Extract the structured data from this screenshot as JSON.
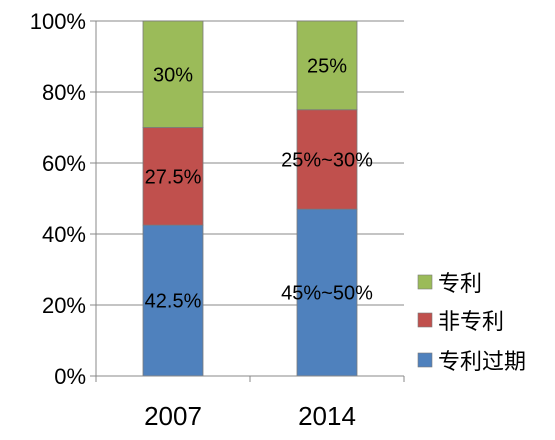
{
  "chart_data": {
    "type": "bar",
    "stacked": true,
    "percent_axis": true,
    "categories": [
      "2007",
      "2014"
    ],
    "ylim": [
      0,
      100
    ],
    "yticks": [
      "0%",
      "20%",
      "40%",
      "60%",
      "80%",
      "100%"
    ],
    "grid": true,
    "legend_position": "right",
    "series": [
      {
        "name": "专利过期",
        "values": [
          42.5,
          47
        ],
        "labels": [
          "42.5%",
          "45%~50%"
        ],
        "color": "#4f81bd"
      },
      {
        "name": "非专利",
        "values": [
          27.5,
          28
        ],
        "labels": [
          "27.5%",
          "25%~30%"
        ],
        "color": "#c0504d"
      },
      {
        "name": "专利",
        "values": [
          30,
          25
        ],
        "labels": [
          "30%",
          "25%"
        ],
        "color": "#9bbb59"
      }
    ],
    "legend_order": [
      "专利",
      "非专利",
      "专利过期"
    ]
  }
}
